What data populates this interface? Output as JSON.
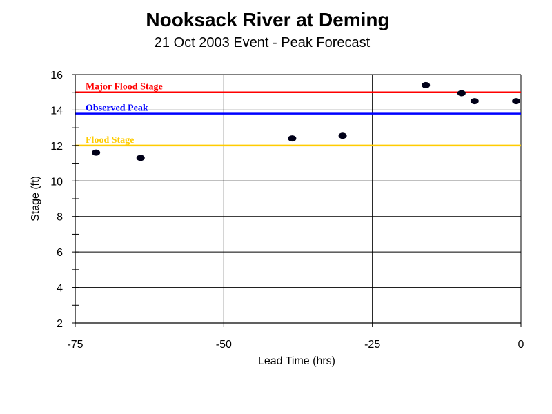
{
  "chart_data": {
    "type": "scatter",
    "title": "Nooksack River at Deming",
    "subtitle": "21 Oct 2003 Event - Peak Forecast",
    "xlabel": "Lead Time (hrs)",
    "ylabel": "Stage (ft)",
    "xlim": [
      -75,
      0
    ],
    "ylim": [
      2,
      16
    ],
    "xticks": [
      -75,
      -50,
      -25,
      0
    ],
    "yticks": [
      2,
      4,
      6,
      8,
      10,
      12,
      14,
      16
    ],
    "grid": true,
    "points": [
      {
        "x": -71.5,
        "y": 11.6
      },
      {
        "x": -64,
        "y": 11.3
      },
      {
        "x": -38.5,
        "y": 12.4
      },
      {
        "x": -30,
        "y": 12.55
      },
      {
        "x": -16,
        "y": 15.4
      },
      {
        "x": -10,
        "y": 14.95
      },
      {
        "x": -7.8,
        "y": 14.5
      },
      {
        "x": -0.8,
        "y": 14.5
      }
    ],
    "reference_lines": [
      {
        "label": "Major Flood Stage",
        "y": 15.0,
        "color": "#ff0000"
      },
      {
        "label": "Observed Peak",
        "y": 13.8,
        "color": "#0000ff"
      },
      {
        "label": "Flood Stage",
        "y": 12.0,
        "color": "#ffcc00"
      }
    ]
  }
}
